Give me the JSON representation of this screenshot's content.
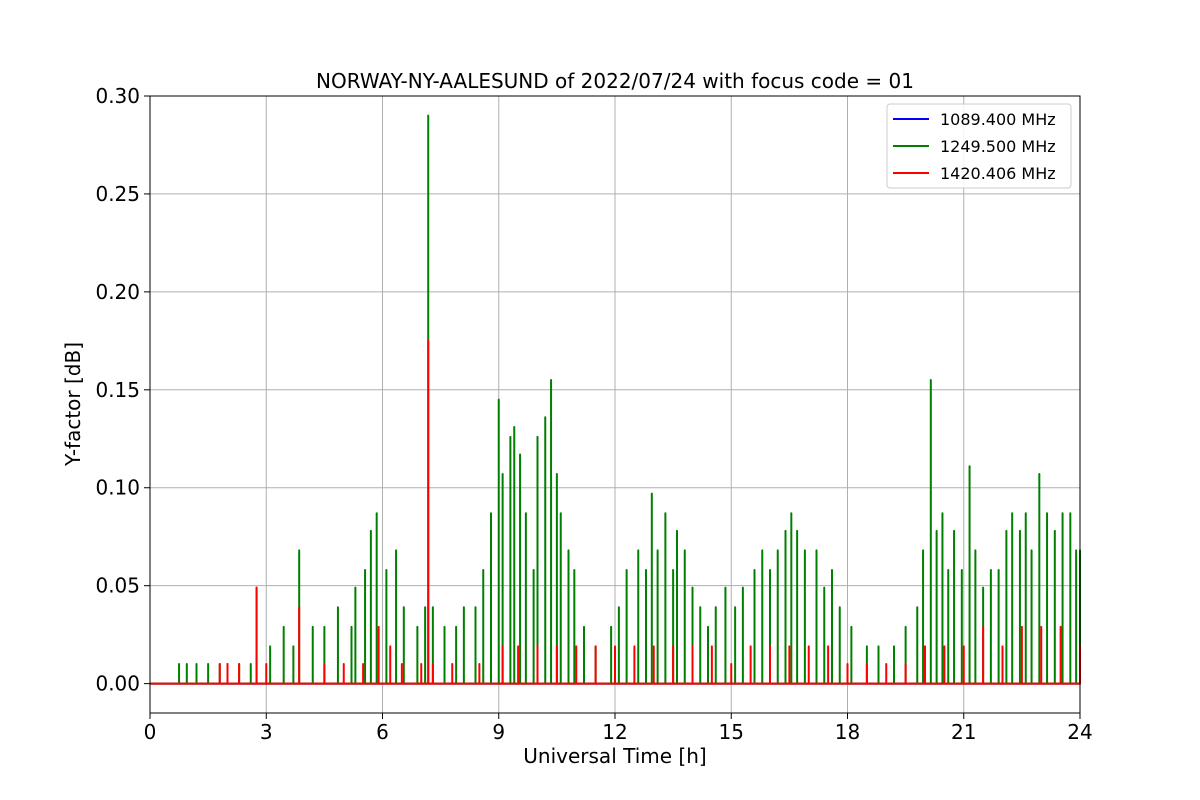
{
  "chart_data": {
    "type": "line",
    "title": "NORWAY-NY-AALESUND of 2022/07/24 with focus code = 01",
    "xlabel": "Universal Time [h]",
    "ylabel": "Y-factor [dB]",
    "xlim": [
      0,
      24
    ],
    "ylim": [
      -0.015,
      0.3
    ],
    "xticks": [
      0,
      3,
      6,
      9,
      12,
      15,
      18,
      21,
      24
    ],
    "xtick_labels": [
      "0",
      "3",
      "6",
      "9",
      "12",
      "15",
      "18",
      "21",
      "24"
    ],
    "yticks": [
      0.0,
      0.05,
      0.1,
      0.15,
      0.2,
      0.25,
      0.3
    ],
    "ytick_labels": [
      "0.00",
      "0.05",
      "0.10",
      "0.15",
      "0.20",
      "0.25",
      "0.30"
    ],
    "grid": true,
    "legend_position": "top-right",
    "series": [
      {
        "name": "1089.400 MHz",
        "color": "#0000ff",
        "points": [
          [
            0,
            0
          ],
          [
            24,
            0
          ]
        ]
      },
      {
        "name": "1249.500 MHz",
        "color": "#008000",
        "points": [
          [
            0.0,
            0
          ],
          [
            0.75,
            0.01
          ],
          [
            0.95,
            0.01
          ],
          [
            1.2,
            0.01
          ],
          [
            1.5,
            0.01
          ],
          [
            1.8,
            0.01
          ],
          [
            2.0,
            0.01
          ],
          [
            2.3,
            0.01
          ],
          [
            2.6,
            0.01
          ],
          [
            2.75,
            0.049
          ],
          [
            3.1,
            0.019
          ],
          [
            3.45,
            0.029
          ],
          [
            3.7,
            0.019
          ],
          [
            3.85,
            0.068
          ],
          [
            4.2,
            0.029
          ],
          [
            4.5,
            0.029
          ],
          [
            4.85,
            0.039
          ],
          [
            5.2,
            0.029
          ],
          [
            5.3,
            0.049
          ],
          [
            5.55,
            0.058
          ],
          [
            5.7,
            0.078
          ],
          [
            5.85,
            0.087
          ],
          [
            6.1,
            0.058
          ],
          [
            6.35,
            0.068
          ],
          [
            6.55,
            0.039
          ],
          [
            6.9,
            0.029
          ],
          [
            7.1,
            0.039
          ],
          [
            7.18,
            0.29
          ],
          [
            7.3,
            0.039
          ],
          [
            7.6,
            0.029
          ],
          [
            7.9,
            0.029
          ],
          [
            8.1,
            0.039
          ],
          [
            8.4,
            0.039
          ],
          [
            8.6,
            0.058
          ],
          [
            8.8,
            0.087
          ],
          [
            9.0,
            0.145
          ],
          [
            9.1,
            0.107
          ],
          [
            9.3,
            0.126
          ],
          [
            9.4,
            0.131
          ],
          [
            9.55,
            0.117
          ],
          [
            9.7,
            0.087
          ],
          [
            9.9,
            0.058
          ],
          [
            10.0,
            0.126
          ],
          [
            10.2,
            0.136
          ],
          [
            10.35,
            0.155
          ],
          [
            10.5,
            0.107
          ],
          [
            10.6,
            0.087
          ],
          [
            10.8,
            0.068
          ],
          [
            10.95,
            0.058
          ],
          [
            11.2,
            0.029
          ],
          [
            11.5,
            0.019
          ],
          [
            11.9,
            0.029
          ],
          [
            12.1,
            0.039
          ],
          [
            12.3,
            0.058
          ],
          [
            12.6,
            0.068
          ],
          [
            12.8,
            0.058
          ],
          [
            12.95,
            0.097
          ],
          [
            13.1,
            0.068
          ],
          [
            13.3,
            0.087
          ],
          [
            13.5,
            0.058
          ],
          [
            13.6,
            0.078
          ],
          [
            13.8,
            0.068
          ],
          [
            14.0,
            0.049
          ],
          [
            14.2,
            0.039
          ],
          [
            14.4,
            0.029
          ],
          [
            14.6,
            0.039
          ],
          [
            14.85,
            0.049
          ],
          [
            15.1,
            0.039
          ],
          [
            15.3,
            0.049
          ],
          [
            15.6,
            0.058
          ],
          [
            15.8,
            0.068
          ],
          [
            16.0,
            0.058
          ],
          [
            16.2,
            0.068
          ],
          [
            16.4,
            0.078
          ],
          [
            16.55,
            0.087
          ],
          [
            16.7,
            0.078
          ],
          [
            16.9,
            0.068
          ],
          [
            17.2,
            0.068
          ],
          [
            17.4,
            0.049
          ],
          [
            17.6,
            0.058
          ],
          [
            17.8,
            0.039
          ],
          [
            18.1,
            0.029
          ],
          [
            18.5,
            0.019
          ],
          [
            18.8,
            0.019
          ],
          [
            19.2,
            0.019
          ],
          [
            19.5,
            0.029
          ],
          [
            19.8,
            0.039
          ],
          [
            19.95,
            0.068
          ],
          [
            20.15,
            0.155
          ],
          [
            20.3,
            0.078
          ],
          [
            20.45,
            0.087
          ],
          [
            20.6,
            0.058
          ],
          [
            20.75,
            0.078
          ],
          [
            20.95,
            0.058
          ],
          [
            21.15,
            0.111
          ],
          [
            21.3,
            0.068
          ],
          [
            21.5,
            0.049
          ],
          [
            21.7,
            0.058
          ],
          [
            21.9,
            0.058
          ],
          [
            22.1,
            0.078
          ],
          [
            22.25,
            0.087
          ],
          [
            22.45,
            0.078
          ],
          [
            22.6,
            0.087
          ],
          [
            22.75,
            0.068
          ],
          [
            22.95,
            0.107
          ],
          [
            23.15,
            0.087
          ],
          [
            23.35,
            0.078
          ],
          [
            23.55,
            0.087
          ],
          [
            23.75,
            0.087
          ],
          [
            23.9,
            0.068
          ],
          [
            24.0,
            0.068
          ]
        ]
      },
      {
        "name": "1420.406 MHz",
        "color": "#ff0000",
        "points": [
          [
            0.0,
            0
          ],
          [
            1.8,
            0.01
          ],
          [
            2.0,
            0.01
          ],
          [
            2.3,
            0.01
          ],
          [
            2.75,
            0.049
          ],
          [
            3.0,
            0.01
          ],
          [
            3.85,
            0.039
          ],
          [
            4.5,
            0.01
          ],
          [
            5.0,
            0.01
          ],
          [
            5.5,
            0.01
          ],
          [
            5.9,
            0.029
          ],
          [
            6.2,
            0.019
          ],
          [
            6.5,
            0.01
          ],
          [
            7.0,
            0.01
          ],
          [
            7.18,
            0.175
          ],
          [
            7.3,
            0.01
          ],
          [
            7.8,
            0.01
          ],
          [
            8.5,
            0.01
          ],
          [
            9.1,
            0.019
          ],
          [
            9.5,
            0.019
          ],
          [
            10.0,
            0.019
          ],
          [
            10.5,
            0.019
          ],
          [
            11.0,
            0.019
          ],
          [
            11.5,
            0.019
          ],
          [
            12.0,
            0.019
          ],
          [
            12.5,
            0.019
          ],
          [
            13.0,
            0.019
          ],
          [
            13.5,
            0.019
          ],
          [
            14.0,
            0.019
          ],
          [
            14.5,
            0.019
          ],
          [
            15.0,
            0.01
          ],
          [
            15.5,
            0.019
          ],
          [
            16.0,
            0.019
          ],
          [
            16.5,
            0.019
          ],
          [
            17.0,
            0.019
          ],
          [
            17.5,
            0.019
          ],
          [
            18.0,
            0.01
          ],
          [
            18.5,
            0.01
          ],
          [
            19.0,
            0.01
          ],
          [
            19.5,
            0.01
          ],
          [
            20.0,
            0.019
          ],
          [
            20.5,
            0.019
          ],
          [
            21.0,
            0.019
          ],
          [
            21.5,
            0.029
          ],
          [
            22.0,
            0.019
          ],
          [
            22.5,
            0.029
          ],
          [
            23.0,
            0.029
          ],
          [
            23.5,
            0.029
          ],
          [
            24.0,
            0.019
          ]
        ]
      }
    ]
  }
}
